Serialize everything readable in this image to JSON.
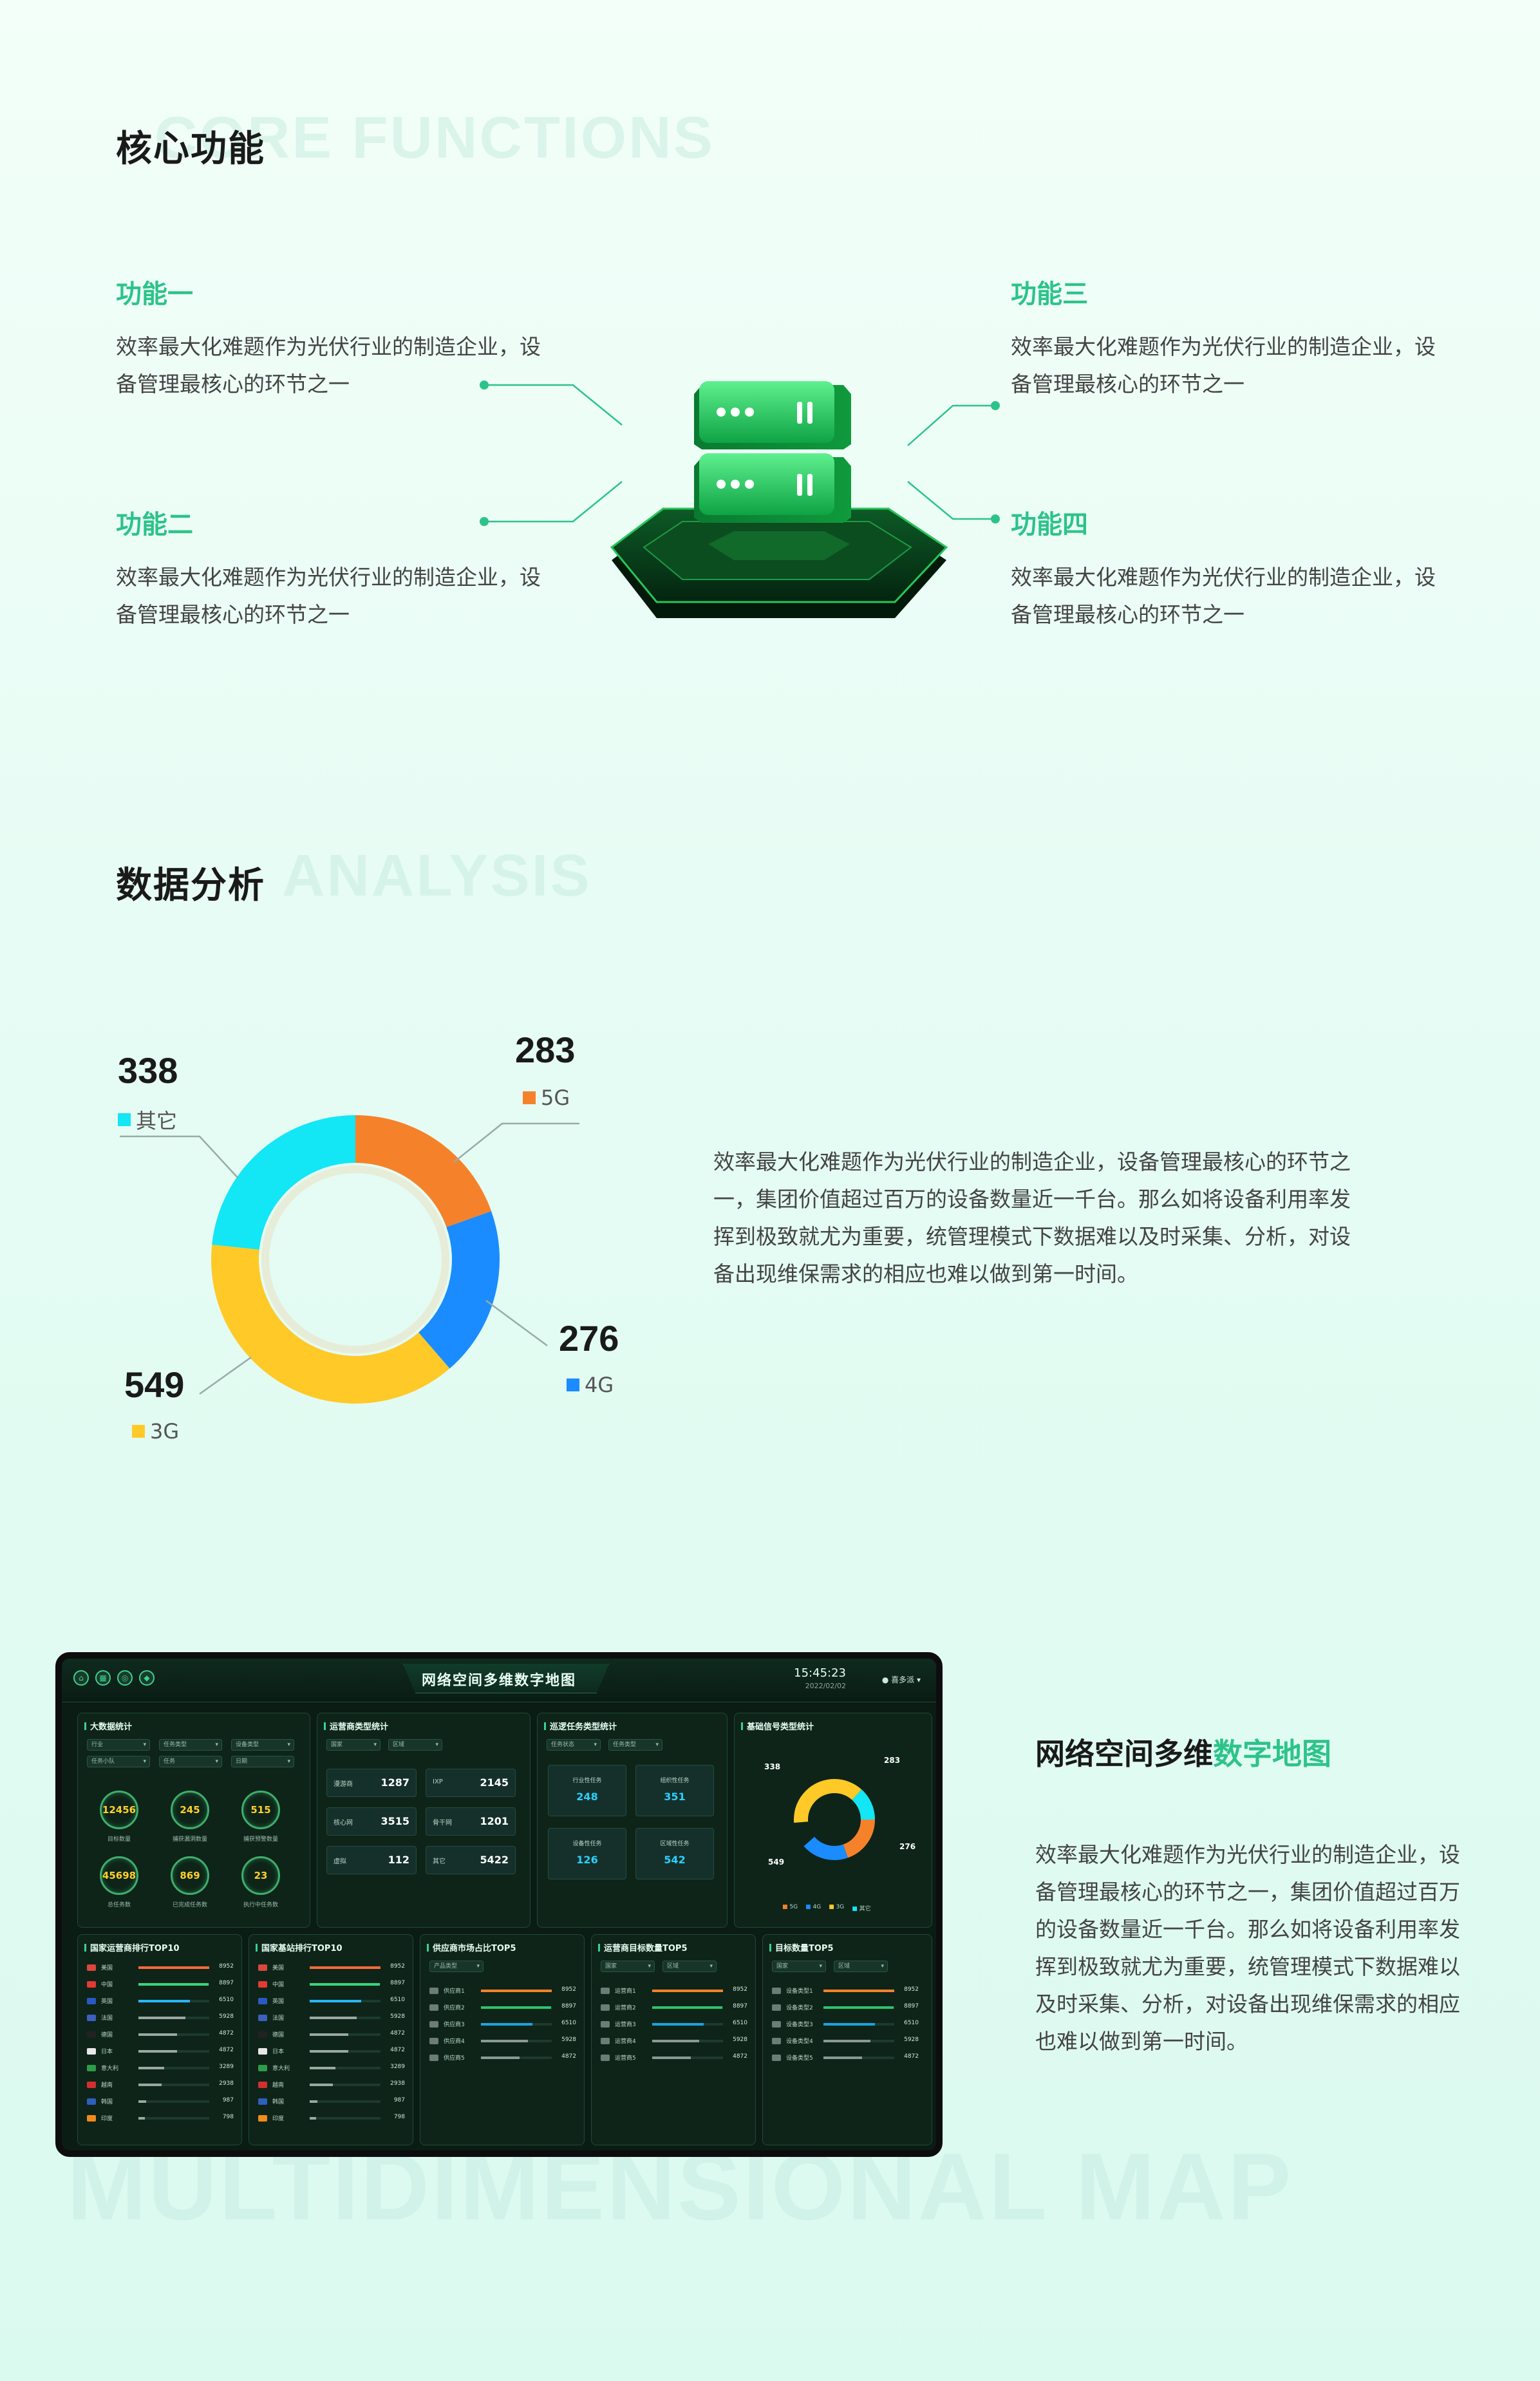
{
  "section1": {
    "title": "核心功能",
    "bg_text": "CORE FUNCTIONS",
    "features": [
      {
        "title": "功能一",
        "desc": "效率最大化难题作为光伏行业的制造企业，设备管理最核心的环节之一"
      },
      {
        "title": "功能二",
        "desc": "效率最大化难题作为光伏行业的制造企业，设备管理最核心的环节之一"
      },
      {
        "title": "功能三",
        "desc": "效率最大化难题作为光伏行业的制造企业，设备管理最核心的环节之一"
      },
      {
        "title": "功能四",
        "desc": "效率最大化难题作为光伏行业的制造企业，设备管理最核心的环节之一"
      }
    ]
  },
  "section2": {
    "title": "数据分析",
    "bg_text": "ANALYSIS",
    "description": "效率最大化难题作为光伏行业的制造企业，设备管理最核心的环节之一，集团价值超过百万的设备数量近一千台。那么如将设备利用率发挥到极致就尤为重要，统管理模式下数据难以及时采集、分析，对设备出现维保需求的相应也难以做到第一时间。"
  },
  "chart_data": {
    "type": "pie",
    "title": "",
    "categories": [
      "5G",
      "4G",
      "3G",
      "其它"
    ],
    "values": [
      283,
      276,
      549,
      338
    ],
    "colors": [
      "#f5822a",
      "#1a8cff",
      "#ffc928",
      "#13e6f5"
    ],
    "donut": true
  },
  "section3": {
    "title_main": "网络空间多维",
    "title_highlight": "数字地图",
    "bg_text": "MULTIDIMENSIONAL MAP",
    "description": "效率最大化难题作为光伏行业的制造企业，设备管理最核心的环节之一，集团价值超过百万的设备数量近一千台。那么如将设备利用率发挥到极致就尤为重要，统管理模式下数据难以及时采集、分析，对设备出现维保需求的相应也难以做到第一时间。"
  },
  "dashboard": {
    "title": "网络空间多维数字地图",
    "time": "15:45:23",
    "date": "2022/02/02",
    "user": "喜多派",
    "panels": {
      "bigdata": {
        "title": "大数据统计",
        "selects": [
          "行业",
          "任务类型",
          "设备类型",
          "任务小队",
          "任务",
          "日期"
        ],
        "rings": [
          {
            "value": "12456",
            "label": "目标数量"
          },
          {
            "value": "245",
            "label": "捕获漏洞数量"
          },
          {
            "value": "515",
            "label": "捕获预警数量"
          },
          {
            "value": "45698",
            "label": "总任务数"
          },
          {
            "value": "869",
            "label": "已完成任务数"
          },
          {
            "value": "23",
            "label": "执行中任务数"
          }
        ]
      },
      "operator": {
        "title": "运营商类型统计",
        "selects": [
          "国家",
          "区域"
        ],
        "stats": [
          {
            "label": "漫游商",
            "value": "1287"
          },
          {
            "label": "IXP",
            "value": "2145"
          },
          {
            "label": "核心网",
            "value": "3515"
          },
          {
            "label": "骨干网",
            "value": "1201"
          },
          {
            "label": "虚拟",
            "value": "112"
          },
          {
            "label": "其它",
            "value": "5422"
          }
        ]
      },
      "patrol": {
        "title": "巡逻任务类型统计",
        "selects": [
          "任务状态",
          "任务类型"
        ],
        "tiles": [
          {
            "label": "行业性任务",
            "value": "248"
          },
          {
            "label": "组织性任务",
            "value": "351"
          },
          {
            "label": "设备性任务",
            "value": "126"
          },
          {
            "label": "区域性任务",
            "value": "542"
          }
        ]
      },
      "signal": {
        "title": "基础信号类型统计",
        "labels": {
          "a": "338",
          "b": "283",
          "c": "276",
          "d": "549"
        },
        "legend": [
          "5G",
          "4G",
          "3G",
          "其它"
        ]
      },
      "country_ops": {
        "title": "国家运营商排行TOP10",
        "rows": [
          {
            "name": "美国",
            "value": "8952"
          },
          {
            "name": "中国",
            "value": "8897"
          },
          {
            "name": "英国",
            "value": "6510"
          },
          {
            "name": "法国",
            "value": "5928"
          },
          {
            "name": "德国",
            "value": "4872"
          },
          {
            "name": "日本",
            "value": "4872"
          },
          {
            "name": "意大利",
            "value": "3289"
          },
          {
            "name": "越南",
            "value": "2938"
          },
          {
            "name": "韩国",
            "value": "987"
          },
          {
            "name": "印度",
            "value": "798"
          }
        ]
      },
      "country_base": {
        "title": "国家基站排行TOP10",
        "rows": [
          {
            "name": "美国",
            "value": "8952"
          },
          {
            "name": "中国",
            "value": "8897"
          },
          {
            "name": "英国",
            "value": "6510"
          },
          {
            "name": "法国",
            "value": "5928"
          },
          {
            "name": "德国",
            "value": "4872"
          },
          {
            "name": "日本",
            "value": "4872"
          },
          {
            "name": "意大利",
            "value": "3289"
          },
          {
            "name": "越南",
            "value": "2938"
          },
          {
            "name": "韩国",
            "value": "987"
          },
          {
            "name": "印度",
            "value": "798"
          }
        ]
      },
      "supplier": {
        "title": "供应商市场占比TOP5",
        "selects": [
          "产品类型"
        ],
        "rows": [
          {
            "name": "供应商1",
            "value": "8952"
          },
          {
            "name": "供应商2",
            "value": "8897"
          },
          {
            "name": "供应商3",
            "value": "6510"
          },
          {
            "name": "供应商4",
            "value": "5928"
          },
          {
            "name": "供应商5",
            "value": "4872"
          }
        ]
      },
      "op_target": {
        "title": "运营商目标数量TOP5",
        "selects": [
          "国家",
          "区域"
        ],
        "rows": [
          {
            "name": "运营商1",
            "value": "8952"
          },
          {
            "name": "运营商2",
            "value": "8897"
          },
          {
            "name": "运营商3",
            "value": "6510"
          },
          {
            "name": "运营商4",
            "value": "5928"
          },
          {
            "name": "运营商5",
            "value": "4872"
          }
        ]
      },
      "target_type": {
        "title": "目标数量TOP5",
        "selects": [
          "国家",
          "区域"
        ],
        "rows": [
          {
            "name": "设备类型1",
            "value": "8952"
          },
          {
            "name": "设备类型2",
            "value": "8897"
          },
          {
            "name": "设备类型3",
            "value": "6510"
          },
          {
            "name": "设备类型4",
            "value": "5928"
          },
          {
            "name": "设备类型5",
            "value": "4872"
          }
        ]
      }
    }
  }
}
